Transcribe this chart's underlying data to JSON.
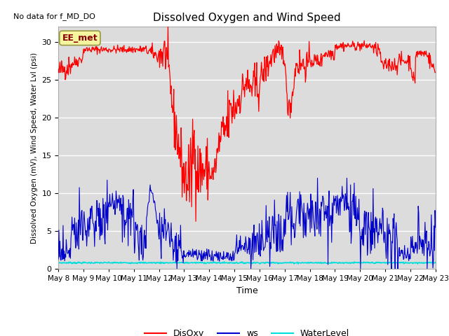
{
  "title": "Dissolved Oxygen and Wind Speed",
  "top_left_text": "No data for f_MD_DO",
  "ylabel": "Dissolved Oxygen (mV), Wind Speed, Water Lvl (psi)",
  "xlabel": "Time",
  "annotation": "EE_met",
  "ylim": [
    0,
    32
  ],
  "yticks": [
    0,
    5,
    10,
    15,
    20,
    25,
    30
  ],
  "x_labels": [
    "May 8",
    "May 9",
    "May 10",
    "May 11",
    "May 12",
    "May 13",
    "May 14",
    "May 15",
    "May 16",
    "May 17",
    "May 18",
    "May 19",
    "May 20",
    "May 21",
    "May 22",
    "May 23"
  ],
  "bg_color": "#dcdcdc",
  "disoxy_color": "#ff0000",
  "ws_color": "#0000cc",
  "water_color": "#00dddd",
  "figsize": [
    6.4,
    4.8
  ],
  "dpi": 100
}
